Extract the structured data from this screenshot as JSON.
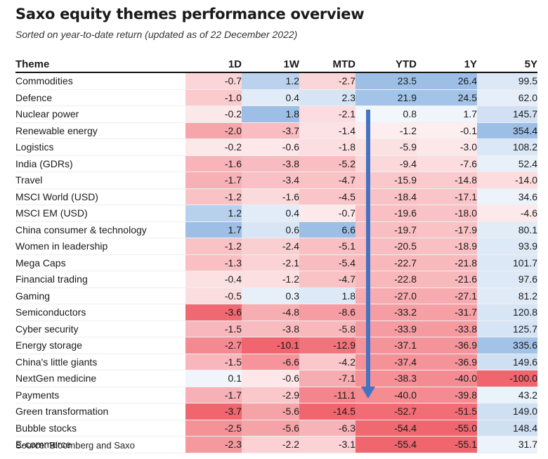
{
  "title": "Saxo equity themes performance overview",
  "subtitle": "Sorted on year-to-date return (updated as of 22 December 2022)",
  "source": "Source: Bloomberg and Saxo",
  "columns": [
    "Theme",
    "1D",
    "1W",
    "MTD",
    "YTD",
    "1Y",
    "5Y"
  ],
  "rows": [
    {
      "theme": "Commodities",
      "values": [
        "-0.7",
        "1.2",
        "-2.7",
        "23.5",
        "26.4",
        "99.5"
      ]
    },
    {
      "theme": "Defence",
      "values": [
        "-1.0",
        "0.4",
        "2.3",
        "21.9",
        "24.5",
        "62.0"
      ]
    },
    {
      "theme": "Nuclear power",
      "values": [
        "-0.2",
        "1.8",
        "-2.1",
        "0.8",
        "1.7",
        "145.7"
      ]
    },
    {
      "theme": "Renewable energy",
      "values": [
        "-2.0",
        "-3.7",
        "-1.4",
        "-1.2",
        "-0.1",
        "354.4"
      ]
    },
    {
      "theme": "Logistics",
      "values": [
        "-0.2",
        "-0.6",
        "-1.8",
        "-5.9",
        "-3.0",
        "108.2"
      ]
    },
    {
      "theme": "India (GDRs)",
      "values": [
        "-1.6",
        "-3.8",
        "-5.2",
        "-9.4",
        "-7.6",
        "52.4"
      ]
    },
    {
      "theme": "Travel",
      "values": [
        "-1.7",
        "-3.4",
        "-4.7",
        "-15.9",
        "-14.8",
        "-14.0"
      ]
    },
    {
      "theme": "MSCI World (USD)",
      "values": [
        "-1.2",
        "-1.6",
        "-4.5",
        "-18.4",
        "-17.1",
        "34.6"
      ]
    },
    {
      "theme": "MSCI EM (USD)",
      "values": [
        "1.2",
        "0.4",
        "-0.7",
        "-19.6",
        "-18.0",
        "-4.6"
      ]
    },
    {
      "theme": "China consumer & technology",
      "values": [
        "1.7",
        "0.6",
        "6.6",
        "-19.7",
        "-17.9",
        "80.1"
      ]
    },
    {
      "theme": "Women in leadership",
      "values": [
        "-1.2",
        "-2.4",
        "-5.1",
        "-20.5",
        "-18.9",
        "93.9"
      ]
    },
    {
      "theme": "Mega Caps",
      "values": [
        "-1.3",
        "-2.1",
        "-5.4",
        "-22.7",
        "-21.8",
        "101.7"
      ]
    },
    {
      "theme": "Financial trading",
      "values": [
        "-0.4",
        "-1.2",
        "-4.7",
        "-22.8",
        "-21.6",
        "97.6"
      ]
    },
    {
      "theme": "Gaming",
      "values": [
        "-0.5",
        "0.3",
        "1.8",
        "-27.0",
        "-27.1",
        "81.2"
      ]
    },
    {
      "theme": "Semiconductors",
      "values": [
        "-3.6",
        "-4.8",
        "-8.6",
        "-33.2",
        "-31.7",
        "120.8"
      ]
    },
    {
      "theme": "Cyber security",
      "values": [
        "-1.5",
        "-3.8",
        "-5.8",
        "-33.9",
        "-33.8",
        "125.7"
      ]
    },
    {
      "theme": "Energy storage",
      "values": [
        "-2.7",
        "-10.1",
        "-12.9",
        "-37.1",
        "-36.9",
        "335.6"
      ]
    },
    {
      "theme": "China's little giants",
      "values": [
        "-1.5",
        "-6.6",
        "-4.2",
        "-37.4",
        "-36.9",
        "149.6"
      ]
    },
    {
      "theme": "NextGen medicine",
      "values": [
        "0.1",
        "-0.6",
        "-7.1",
        "-38.3",
        "-40.0",
        "-100.0"
      ]
    },
    {
      "theme": "Payments",
      "values": [
        "-1.7",
        "-2.9",
        "-11.1",
        "-40.0",
        "-39.8",
        "43.2"
      ]
    },
    {
      "theme": "Green transformation",
      "values": [
        "-3.7",
        "-5.6",
        "-14.5",
        "-52.7",
        "-51.5",
        "149.0"
      ]
    },
    {
      "theme": "Bubble stocks",
      "values": [
        "-2.5",
        "-5.6",
        "-6.3",
        "-54.4",
        "-55.0",
        "148.4"
      ]
    },
    {
      "theme": "E-commerce",
      "values": [
        "-2.3",
        "-2.2",
        "-3.1",
        "-55.4",
        "-55.1",
        "31.7"
      ]
    }
  ],
  "heatmap_colors": {
    "positive": "#9dbfe6",
    "neutral": "#ffffff",
    "negative": "#f0656e"
  },
  "arrow_color": "#4472c4"
}
